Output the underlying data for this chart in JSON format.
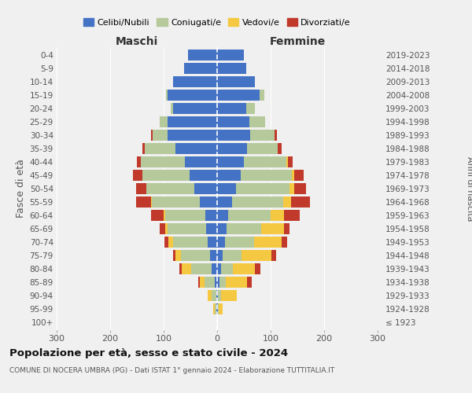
{
  "age_groups": [
    "100+",
    "95-99",
    "90-94",
    "85-89",
    "80-84",
    "75-79",
    "70-74",
    "65-69",
    "60-64",
    "55-59",
    "50-54",
    "45-49",
    "40-44",
    "35-39",
    "30-34",
    "25-29",
    "20-24",
    "15-19",
    "10-14",
    "5-9",
    "0-4"
  ],
  "birth_years": [
    "≤ 1923",
    "1924-1928",
    "1929-1933",
    "1934-1938",
    "1939-1943",
    "1944-1948",
    "1949-1953",
    "1954-1958",
    "1959-1963",
    "1964-1968",
    "1969-1973",
    "1974-1978",
    "1979-1983",
    "1984-1988",
    "1989-1993",
    "1994-1998",
    "1999-2003",
    "2004-2008",
    "2009-2013",
    "2014-2018",
    "2019-2023"
  ],
  "maschi_celibi": [
    0,
    1,
    2,
    5,
    10,
    13,
    18,
    20,
    22,
    32,
    42,
    52,
    60,
    78,
    92,
    92,
    82,
    92,
    82,
    62,
    55
  ],
  "maschi_coniugati": [
    0,
    3,
    8,
    18,
    38,
    55,
    65,
    72,
    75,
    90,
    90,
    88,
    82,
    57,
    28,
    15,
    5,
    3,
    0,
    0,
    0
  ],
  "maschi_vedovi": [
    0,
    3,
    8,
    10,
    18,
    10,
    8,
    5,
    3,
    2,
    1,
    0,
    0,
    0,
    0,
    0,
    0,
    0,
    0,
    0,
    0
  ],
  "maschi_divorziati": [
    0,
    0,
    0,
    3,
    5,
    5,
    7,
    10,
    23,
    28,
    18,
    18,
    8,
    5,
    3,
    0,
    0,
    0,
    0,
    0,
    0
  ],
  "femmine_nubili": [
    0,
    1,
    2,
    4,
    7,
    10,
    14,
    18,
    20,
    28,
    36,
    44,
    50,
    56,
    62,
    60,
    55,
    80,
    70,
    55,
    50
  ],
  "femmine_coniugate": [
    0,
    2,
    5,
    12,
    22,
    35,
    55,
    65,
    80,
    95,
    100,
    95,
    80,
    57,
    45,
    30,
    15,
    8,
    0,
    0,
    0
  ],
  "femmine_vedove": [
    0,
    8,
    30,
    40,
    42,
    56,
    52,
    42,
    25,
    15,
    8,
    5,
    3,
    0,
    0,
    0,
    0,
    0,
    0,
    0,
    0
  ],
  "femmine_divorziate": [
    0,
    0,
    0,
    8,
    10,
    10,
    10,
    10,
    30,
    35,
    22,
    18,
    8,
    8,
    5,
    0,
    0,
    0,
    0,
    0,
    0
  ],
  "colors": {
    "celibi": "#4472c4",
    "coniugati": "#b5c99a",
    "vedovi": "#f5c842",
    "divorziati": "#c0392b"
  },
  "bg_color": "#f0f0f0",
  "title": "Popolazione per età, sesso e stato civile - 2024",
  "subtitle": "COMUNE DI NOCERA UMBRA (PG) - Dati ISTAT 1° gennaio 2024 - Elaborazione TUTTITALIA.IT"
}
